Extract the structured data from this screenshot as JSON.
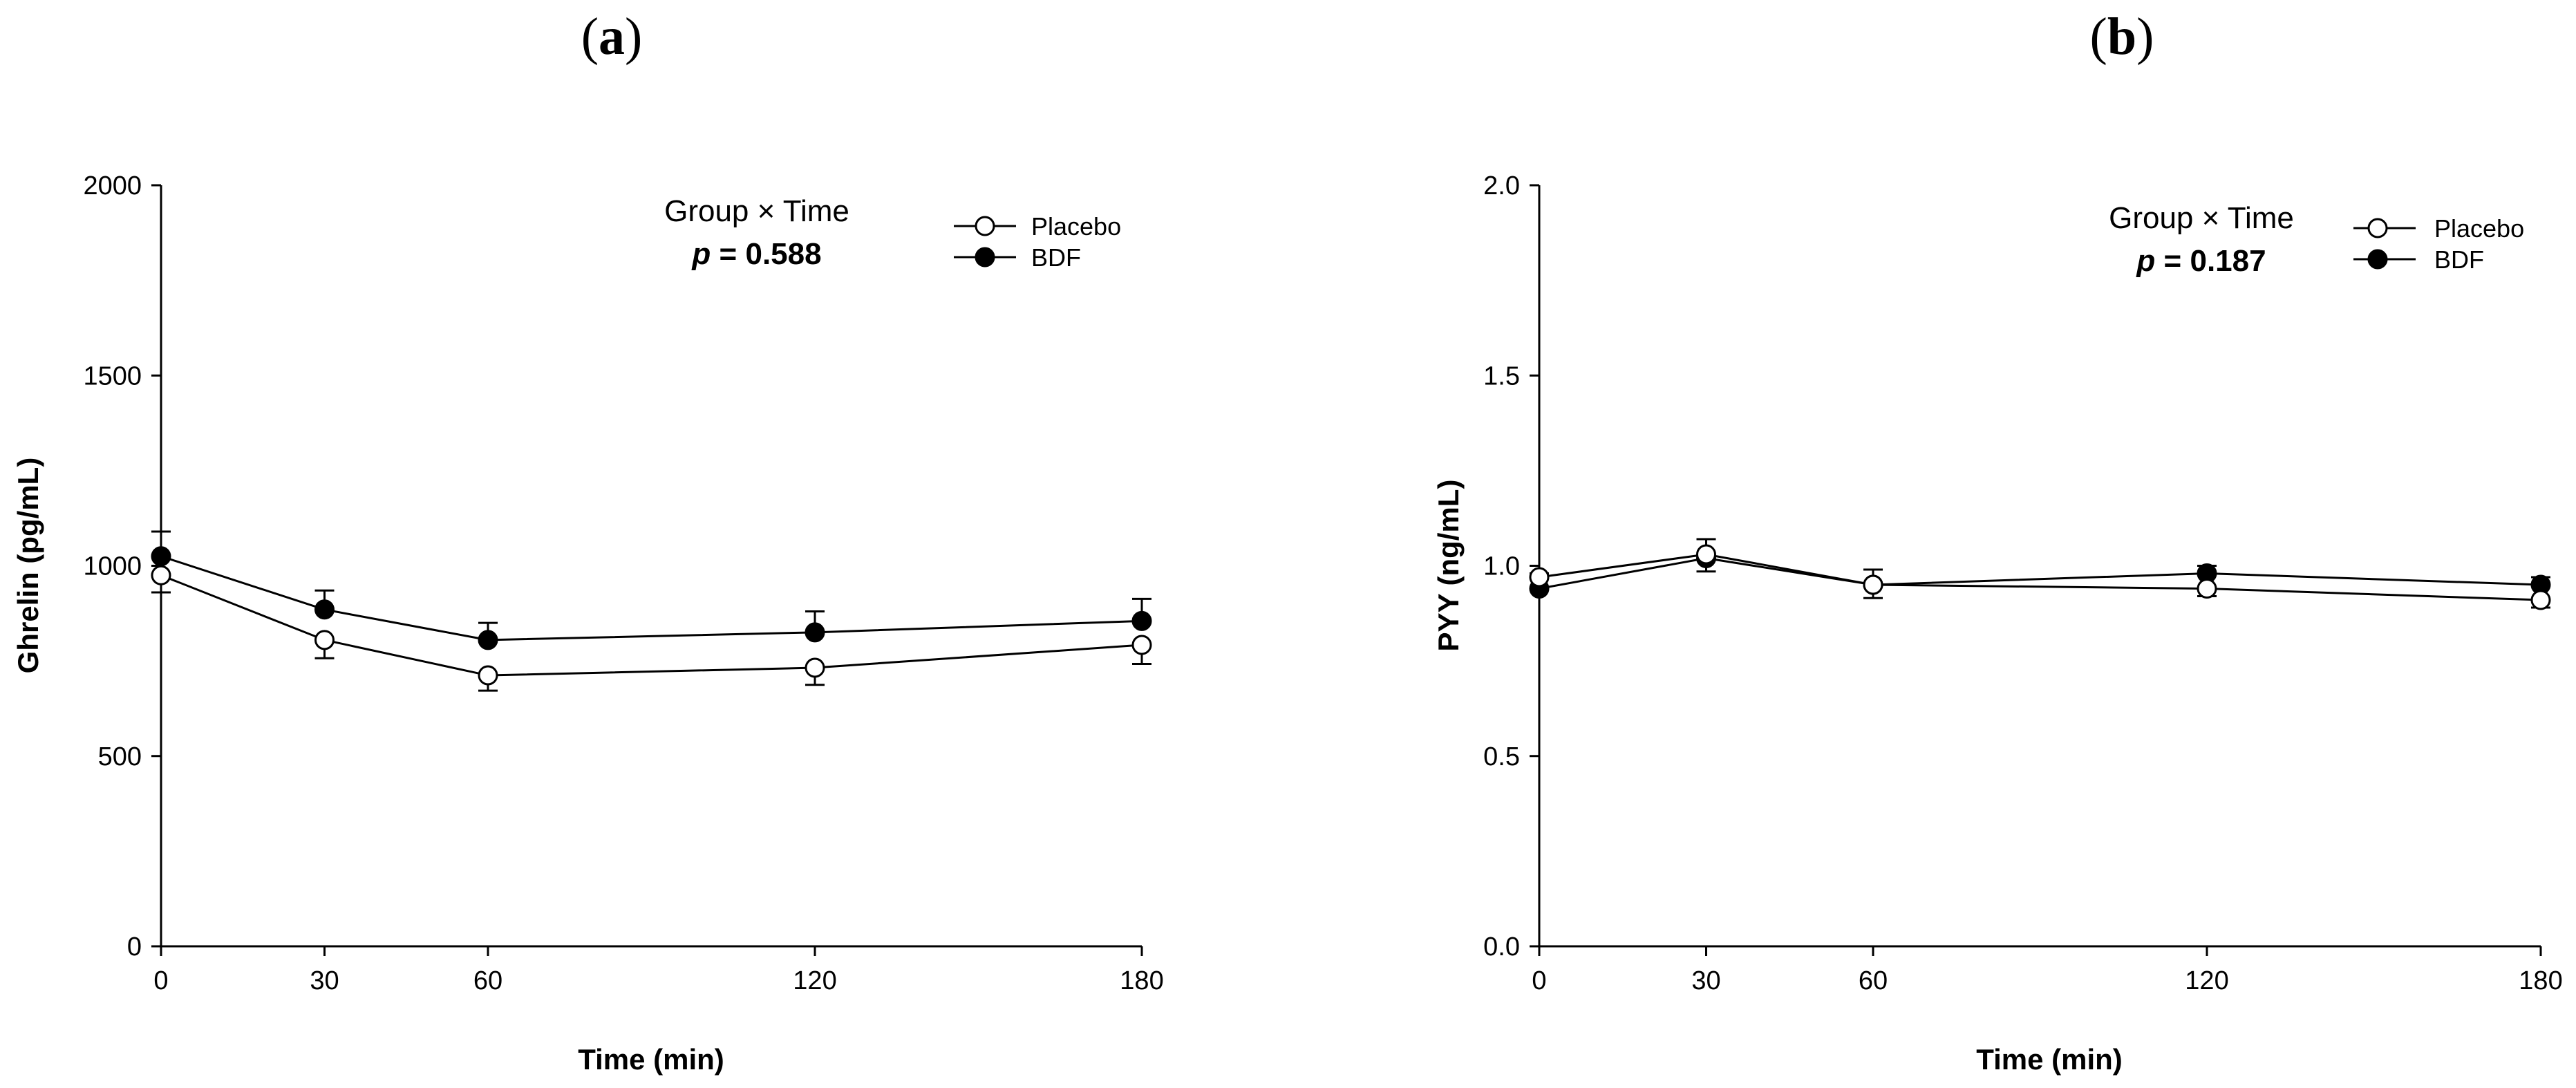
{
  "chart_data": [
    {
      "type": "line",
      "panel_label": "a",
      "x": [
        0,
        30,
        60,
        120,
        180
      ],
      "xlim": [
        0,
        180
      ],
      "xticks": [
        0,
        30,
        60,
        120,
        180
      ],
      "ylim": [
        0,
        2000
      ],
      "yticks": [
        0,
        500,
        1000,
        1500,
        2000
      ],
      "xlabel": "Time (min)",
      "ylabel": "Ghrelin (pg/mL)",
      "annotation": {
        "line1": "Group × Time",
        "p_symbol": "p",
        "p_value": "= 0.588"
      },
      "legend_position": "top-right",
      "series": [
        {
          "name": "Placebo",
          "marker": "open-circle",
          "values": [
            975,
            805,
            712,
            732,
            792
          ],
          "errors": [
            45,
            48,
            40,
            45,
            50
          ]
        },
        {
          "name": "BDF",
          "marker": "filled-circle",
          "values": [
            1025,
            885,
            805,
            825,
            855
          ],
          "errors": [
            65,
            50,
            45,
            55,
            58
          ]
        }
      ]
    },
    {
      "type": "line",
      "panel_label": "b",
      "x": [
        0,
        30,
        60,
        120,
        180
      ],
      "xlim": [
        0,
        180
      ],
      "xticks": [
        0,
        30,
        60,
        120,
        180
      ],
      "ylim": [
        0,
        2.0
      ],
      "yticks": [
        "0.0",
        "0.5",
        "1.0",
        "1.5",
        "2.0"
      ],
      "xlabel": "Time (min)",
      "ylabel": "PYY (ng/mL)",
      "annotation": {
        "line1": "Group × Time",
        "p_symbol": "p",
        "p_value": "= 0.187"
      },
      "legend_position": "top-right",
      "series": [
        {
          "name": "Placebo",
          "marker": "open-circle",
          "values": [
            0.97,
            1.03,
            0.95,
            0.94,
            0.91
          ],
          "errors": [
            0.03,
            0.045,
            0.035,
            0.02,
            0.02
          ]
        },
        {
          "name": "BDF",
          "marker": "filled-circle",
          "values": [
            0.94,
            1.02,
            0.95,
            0.98,
            0.95
          ],
          "errors": [
            0.04,
            0.05,
            0.04,
            0.02,
            0.02
          ]
        }
      ]
    }
  ]
}
